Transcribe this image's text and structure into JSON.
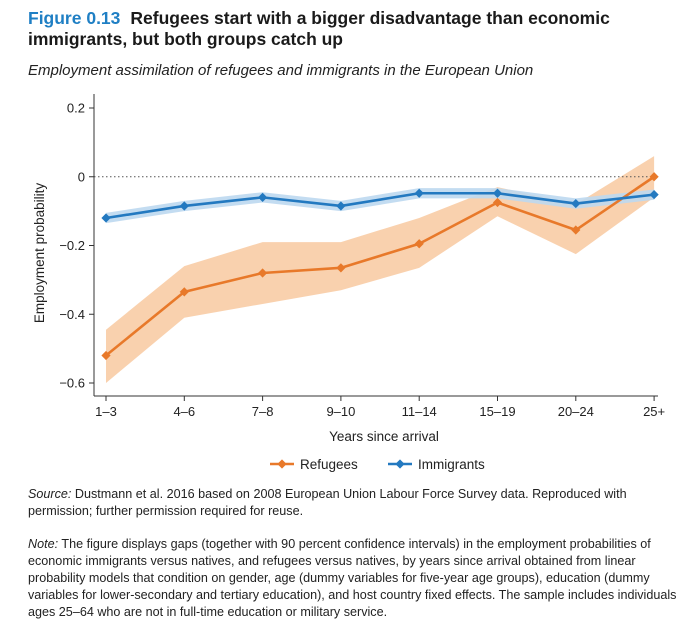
{
  "figure": {
    "label": "Figure 0.13",
    "title": "Refugees start with a bigger disadvantage than economic immigrants, but both groups catch up",
    "subtitle": "Employment assimilation of refugees and immigrants in the European Union"
  },
  "source": {
    "label": "Source:",
    "text": " Dustmann et al. 2016 based on 2008 European Union Labour Force Survey data. Reproduced with permission; further permission required for reuse."
  },
  "note": {
    "label": "Note:",
    "text": " The figure displays gaps (together with 90 percent confidence intervals) in the employment probabilities of economic immigrants versus natives, and refugees versus natives, by years since arrival obtained from linear probability models that condition on gender, age (dummy variables for five-year age groups), education (dummy variables for lower-secondary and tertiary education), and host country fixed effects. The sample includes individuals ages 25–64 who are not in full-time education or military service."
  },
  "colors": {
    "refugees": "#e8792a",
    "refugees_band": "#f8c9a0",
    "immigrants": "#2379c0",
    "immigrants_band": "#bcd8ef"
  },
  "chart_data": {
    "type": "line",
    "xlabel": "Years since arrival",
    "ylabel": "Employment probability",
    "categories": [
      "1–3",
      "4–6",
      "7–8",
      "9–10",
      "11–14",
      "15–19",
      "20–24",
      "25+"
    ],
    "ylim": [
      -0.6,
      0.2
    ],
    "yticks": [
      0.2,
      0,
      -0.2,
      -0.4,
      -0.6
    ],
    "ytick_labels": [
      "0.2",
      "0",
      "−0.2",
      "−0.4",
      "−0.6"
    ],
    "reference_line": 0,
    "legend_position": "bottom",
    "series": [
      {
        "name": "Refugees",
        "marker": "diamond",
        "values": [
          -0.52,
          -0.335,
          -0.28,
          -0.265,
          -0.195,
          -0.075,
          -0.155,
          0.0
        ],
        "ci_lower": [
          -0.6,
          -0.41,
          -0.37,
          -0.33,
          -0.265,
          -0.115,
          -0.225,
          -0.06
        ],
        "ci_upper": [
          -0.445,
          -0.26,
          -0.19,
          -0.19,
          -0.12,
          -0.03,
          -0.08,
          0.06
        ]
      },
      {
        "name": "Immigrants",
        "marker": "diamond",
        "values": [
          -0.12,
          -0.085,
          -0.06,
          -0.085,
          -0.048,
          -0.048,
          -0.078,
          -0.052
        ],
        "ci_lower": [
          -0.135,
          -0.1,
          -0.075,
          -0.1,
          -0.063,
          -0.063,
          -0.093,
          -0.067
        ],
        "ci_upper": [
          -0.105,
          -0.07,
          -0.045,
          -0.07,
          -0.033,
          -0.033,
          -0.063,
          -0.037
        ]
      }
    ]
  }
}
